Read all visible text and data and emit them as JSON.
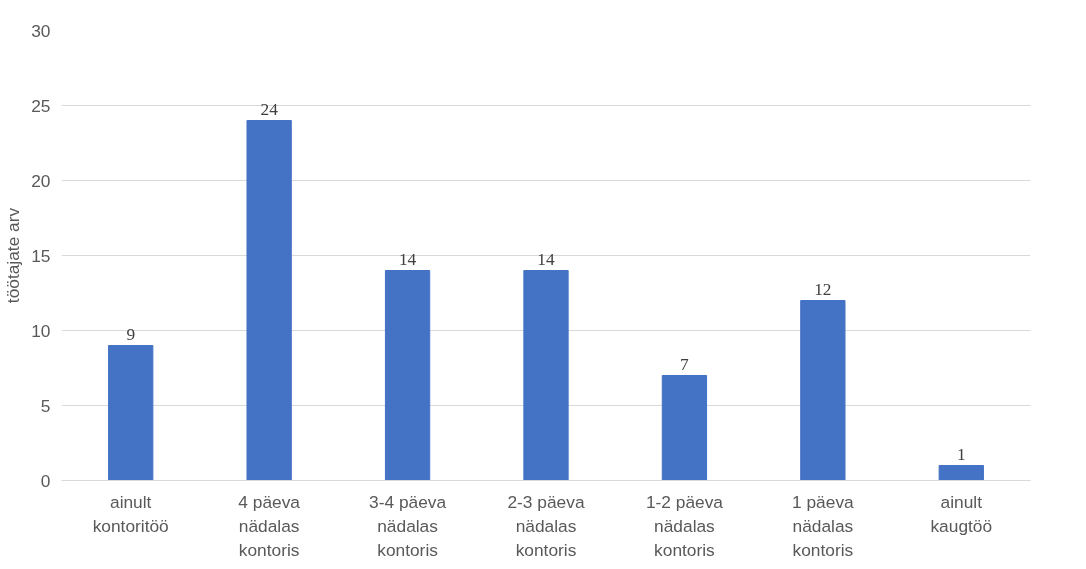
{
  "chart_data": {
    "type": "bar",
    "ylabel": "töötajate arv",
    "categories": [
      "ainult kontoritöö",
      "4 päeva nädalas kontoris",
      "3-4 päeva nädalas kontoris",
      "2-3 päeva nädalas kontoris",
      "1-2 päeva nädalas kontoris",
      "1 päeva nädalas kontoris",
      "ainult kaugtöö"
    ],
    "values": [
      9,
      24,
      14,
      14,
      7,
      12,
      1
    ],
    "color": "#4472c4",
    "ylim": [
      0,
      30
    ],
    "yticks": [
      0,
      5,
      10,
      15,
      20,
      25,
      30
    ],
    "grid": "y",
    "data_labels": true
  }
}
